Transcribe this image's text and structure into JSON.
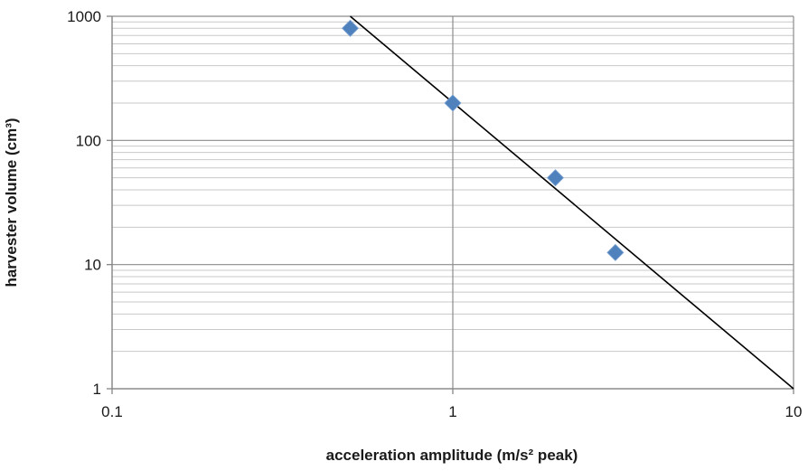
{
  "chart_data": {
    "type": "scatter",
    "title": "",
    "xlabel": "acceleration amplitude (m/s² peak)",
    "ylabel": "harvester volume (cm³)",
    "xscale": "log",
    "yscale": "log",
    "xlim": [
      0.1,
      10
    ],
    "ylim": [
      1,
      1000
    ],
    "x_ticks": [
      {
        "value": 0.1,
        "label": "0.1"
      },
      {
        "value": 1,
        "label": "1"
      },
      {
        "value": 10,
        "label": "10"
      }
    ],
    "y_ticks": [
      {
        "value": 1,
        "label": "1"
      },
      {
        "value": 10,
        "label": "10"
      },
      {
        "value": 100,
        "label": "100"
      },
      {
        "value": 1000,
        "label": "1000"
      }
    ],
    "grid": "major and minor (y), major (x)",
    "legend": "none",
    "marker": "diamond",
    "series": [
      {
        "type": "scatter",
        "color": "#4f81bd",
        "points": [
          {
            "x": 0.5,
            "y": 800
          },
          {
            "x": 1,
            "y": 200
          },
          {
            "x": 2,
            "y": 50
          },
          {
            "x": 3,
            "y": 12.5
          }
        ]
      },
      {
        "type": "line",
        "color": "#000000",
        "points": [
          {
            "x": 0.5,
            "y": 1000
          },
          {
            "x": 10,
            "y": 1
          }
        ]
      }
    ]
  }
}
